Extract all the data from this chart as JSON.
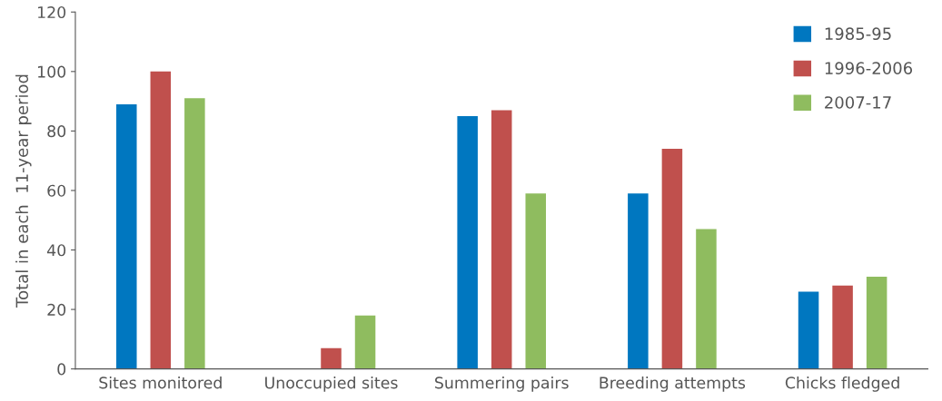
{
  "chart_data": {
    "type": "bar",
    "ylabel": "Total in each  11-year period",
    "categories": [
      "Sites monitored",
      "Unoccupied sites",
      "Summering pairs",
      "Breeding attempts",
      "Chicks fledged"
    ],
    "series": [
      {
        "name": "1985-95",
        "color": "#0077c0",
        "values": [
          89,
          0,
          85,
          59,
          26
        ]
      },
      {
        "name": "1996-2006",
        "color": "#c0504d",
        "values": [
          100,
          7,
          87,
          74,
          28
        ]
      },
      {
        "name": "2007-17",
        "color": "#8fbc5f",
        "values": [
          91,
          18,
          59,
          47,
          31
        ]
      }
    ],
    "ylim": [
      0,
      120
    ],
    "yticks": [
      0,
      20,
      40,
      60,
      80,
      100,
      120
    ],
    "grid": false,
    "legend": "top right"
  }
}
